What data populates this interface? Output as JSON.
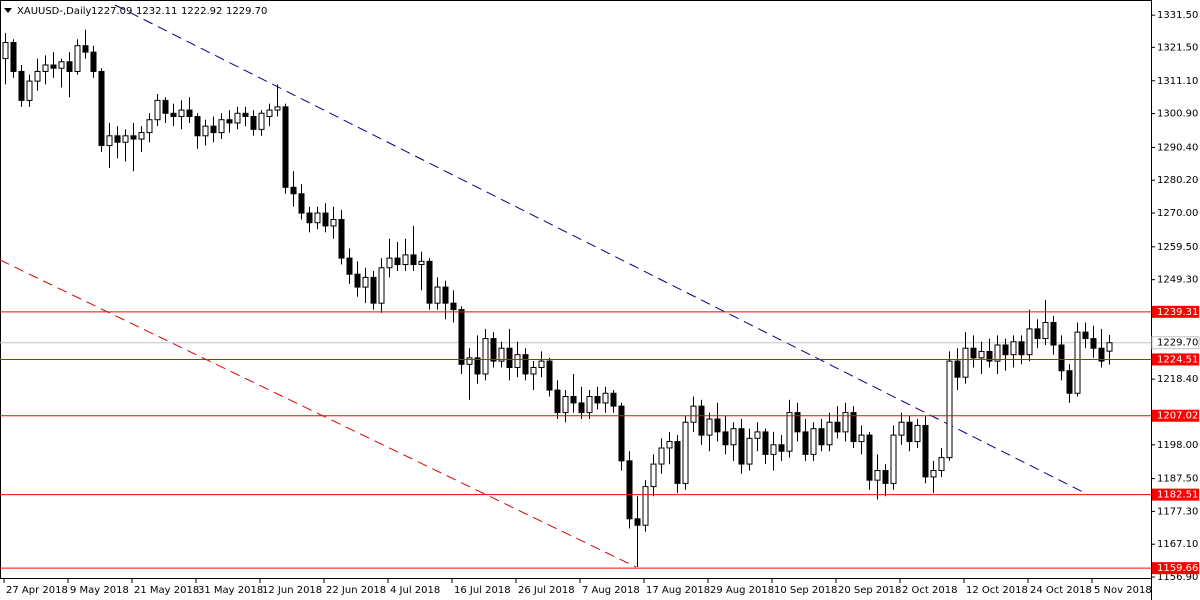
{
  "chart_data": {
    "type": "candlestick",
    "header": {
      "symbol": "XAUUSD-,Daily",
      "ohlc_labels": [
        "1227.09",
        "1232.11",
        "1222.92",
        "1229.70"
      ]
    },
    "ylim": [
      1156.6,
      1336.2
    ],
    "yticks": [
      {
        "value": 1331.5,
        "label": "1331.50"
      },
      {
        "value": 1321.5,
        "label": "1321.50"
      },
      {
        "value": 1311.1,
        "label": "1311.10"
      },
      {
        "value": 1300.9,
        "label": "1300.90"
      },
      {
        "value": 1290.4,
        "label": "1290.40"
      },
      {
        "value": 1280.2,
        "label": "1280.20"
      },
      {
        "value": 1270,
        "label": "1270.00"
      },
      {
        "value": 1259.5,
        "label": "1259.50"
      },
      {
        "value": 1249.3,
        "label": "1249.30"
      },
      {
        "value": 1218.4,
        "label": "1218.40"
      },
      {
        "value": 1198,
        "label": "1198.00"
      },
      {
        "value": 1187.5,
        "label": "1187.50"
      },
      {
        "value": 1177.3,
        "label": "1177.30"
      },
      {
        "value": 1167.1,
        "label": "1167.10"
      },
      {
        "value": 1156.9,
        "label": "1156.90"
      }
    ],
    "levels": [
      1239.31,
      1224.51,
      1207.02,
      1182.51,
      1159.66
    ],
    "level_color": "#ff0000",
    "last_price": {
      "value": 1229.7,
      "label": "1229.70"
    },
    "bull_color": "#ffffff",
    "bear_color": "#000000",
    "grid": false,
    "categories": [
      "27 Apr 2018",
      null,
      null,
      null,
      null,
      null,
      null,
      null,
      "9 May 2018",
      null,
      null,
      null,
      null,
      null,
      null,
      null,
      "21 May 2018",
      null,
      null,
      null,
      null,
      null,
      null,
      null,
      "31 May 2018",
      null,
      null,
      null,
      null,
      null,
      null,
      null,
      "12 Jun 2018",
      null,
      null,
      null,
      null,
      null,
      null,
      null,
      "22 Jun 2018",
      null,
      null,
      null,
      null,
      null,
      null,
      null,
      "4 Jul 2018",
      null,
      null,
      null,
      null,
      null,
      null,
      null,
      "16 Jul 2018",
      null,
      null,
      null,
      null,
      null,
      null,
      null,
      "26 Jul 2018",
      null,
      null,
      null,
      null,
      null,
      null,
      null,
      "7 Aug 2018",
      null,
      null,
      null,
      null,
      null,
      null,
      null,
      "17 Aug 2018",
      null,
      null,
      null,
      null,
      null,
      null,
      null,
      "29 Aug 2018",
      null,
      null,
      null,
      null,
      null,
      null,
      null,
      "10 Sep 2018",
      null,
      null,
      null,
      null,
      null,
      null,
      null,
      "20 Sep 2018",
      null,
      null,
      null,
      null,
      null,
      null,
      null,
      "2 Oct 2018",
      null,
      null,
      null,
      null,
      null,
      null,
      null,
      "12 Oct 2018",
      null,
      null,
      null,
      null,
      null,
      null,
      null,
      "24 Oct 2018",
      null,
      null,
      null,
      null,
      null,
      null,
      null,
      "5 Nov 2018",
      null,
      null
    ],
    "ohlc": [
      [
        1318,
        1326,
        1310,
        1323
      ],
      [
        1323,
        1324,
        1312,
        1314
      ],
      [
        1314,
        1316,
        1303,
        1305
      ],
      [
        1305,
        1313,
        1303,
        1311
      ],
      [
        1311,
        1318,
        1308,
        1314
      ],
      [
        1314,
        1319,
        1310,
        1316
      ],
      [
        1316,
        1320,
        1312,
        1315
      ],
      [
        1315,
        1318,
        1309,
        1317
      ],
      [
        1317,
        1320,
        1306,
        1314
      ],
      [
        1314,
        1324,
        1313,
        1322
      ],
      [
        1322,
        1327,
        1318,
        1320
      ],
      [
        1320,
        1322,
        1312,
        1314
      ],
      [
        1314,
        1315,
        1289,
        1291
      ],
      [
        1291,
        1298,
        1284,
        1294
      ],
      [
        1294,
        1297,
        1287,
        1292
      ],
      [
        1292,
        1296,
        1286,
        1294
      ],
      [
        1294,
        1298,
        1283,
        1293
      ],
      [
        1293,
        1297,
        1289,
        1295
      ],
      [
        1295,
        1301,
        1292,
        1299
      ],
      [
        1299,
        1307,
        1297,
        1305
      ],
      [
        1305,
        1306,
        1298,
        1301
      ],
      [
        1301,
        1304,
        1297,
        1300
      ],
      [
        1300,
        1305,
        1296,
        1302
      ],
      [
        1302,
        1306,
        1298,
        1300
      ],
      [
        1300,
        1301,
        1290,
        1294
      ],
      [
        1294,
        1299,
        1291,
        1297
      ],
      [
        1297,
        1300,
        1292,
        1295
      ],
      [
        1295,
        1301,
        1293,
        1299
      ],
      [
        1299,
        1302,
        1295,
        1298
      ],
      [
        1298,
        1303,
        1296,
        1301
      ],
      [
        1301,
        1303,
        1297,
        1300
      ],
      [
        1300,
        1302,
        1294,
        1296
      ],
      [
        1296,
        1302,
        1294,
        1301
      ],
      [
        1300,
        1304,
        1297,
        1302
      ],
      [
        1302,
        1310,
        1300,
        1303
      ],
      [
        1303,
        1304,
        1276,
        1278
      ],
      [
        1278,
        1283,
        1272,
        1276
      ],
      [
        1276,
        1279,
        1268,
        1270
      ],
      [
        1270,
        1272,
        1264,
        1267
      ],
      [
        1267,
        1272,
        1265,
        1270
      ],
      [
        1270,
        1273,
        1264,
        1266
      ],
      [
        1266,
        1272,
        1262,
        1268
      ],
      [
        1268,
        1271,
        1254,
        1256
      ],
      [
        1256,
        1259,
        1248,
        1251
      ],
      [
        1251,
        1255,
        1244,
        1247
      ],
      [
        1247,
        1253,
        1242,
        1250
      ],
      [
        1250,
        1252,
        1240,
        1242
      ],
      [
        1242,
        1256,
        1239,
        1253
      ],
      [
        1253,
        1262,
        1250,
        1256
      ],
      [
        1256,
        1261,
        1252,
        1254
      ],
      [
        1254,
        1262,
        1252,
        1257
      ],
      [
        1257,
        1266,
        1252,
        1254
      ],
      [
        1254,
        1258,
        1246,
        1255
      ],
      [
        1255,
        1256,
        1240,
        1242
      ],
      [
        1242,
        1250,
        1240,
        1247
      ],
      [
        1247,
        1249,
        1237,
        1242
      ],
      [
        1242,
        1246,
        1236,
        1240
      ],
      [
        1240,
        1241,
        1220,
        1223
      ],
      [
        1223,
        1228,
        1212,
        1225
      ],
      [
        1225,
        1232,
        1217,
        1220
      ],
      [
        1220,
        1234,
        1218,
        1231
      ],
      [
        1231,
        1233,
        1222,
        1224
      ],
      [
        1224,
        1230,
        1222,
        1228
      ],
      [
        1228,
        1234,
        1218,
        1222
      ],
      [
        1222,
        1230,
        1219,
        1226
      ],
      [
        1226,
        1228,
        1218,
        1220
      ],
      [
        1220,
        1224,
        1215,
        1222
      ],
      [
        1222,
        1227,
        1219,
        1224
      ],
      [
        1224,
        1225,
        1213,
        1215
      ],
      [
        1215,
        1218,
        1206,
        1208
      ],
      [
        1208,
        1215,
        1205,
        1213
      ],
      [
        1213,
        1220,
        1208,
        1211
      ],
      [
        1211,
        1216,
        1206,
        1208
      ],
      [
        1208,
        1215,
        1206,
        1213
      ],
      [
        1213,
        1216,
        1209,
        1211
      ],
      [
        1211,
        1216,
        1208,
        1214
      ],
      [
        1214,
        1215,
        1208,
        1210
      ],
      [
        1210,
        1211,
        1190,
        1193
      ],
      [
        1193,
        1196,
        1172,
        1175
      ],
      [
        1175,
        1182,
        1160,
        1173
      ],
      [
        1173,
        1187,
        1171,
        1185
      ],
      [
        1185,
        1195,
        1182,
        1192
      ],
      [
        1192,
        1200,
        1189,
        1197
      ],
      [
        1197,
        1202,
        1192,
        1199
      ],
      [
        1199,
        1201,
        1183,
        1186
      ],
      [
        1186,
        1207,
        1184,
        1205
      ],
      [
        1205,
        1213,
        1202,
        1210
      ],
      [
        1210,
        1212,
        1198,
        1201
      ],
      [
        1201,
        1208,
        1196,
        1206
      ],
      [
        1206,
        1211,
        1199,
        1202
      ],
      [
        1202,
        1207,
        1195,
        1198
      ],
      [
        1198,
        1205,
        1193,
        1203
      ],
      [
        1203,
        1206,
        1189,
        1192
      ],
      [
        1192,
        1203,
        1190,
        1200
      ],
      [
        1200,
        1205,
        1196,
        1202
      ],
      [
        1202,
        1203,
        1192,
        1195
      ],
      [
        1195,
        1202,
        1190,
        1198
      ],
      [
        1198,
        1201,
        1193,
        1196
      ],
      [
        1196,
        1212,
        1194,
        1208
      ],
      [
        1208,
        1211,
        1199,
        1202
      ],
      [
        1202,
        1206,
        1193,
        1195
      ],
      [
        1195,
        1205,
        1193,
        1203
      ],
      [
        1203,
        1206,
        1196,
        1198
      ],
      [
        1198,
        1208,
        1196,
        1205
      ],
      [
        1205,
        1210,
        1200,
        1202
      ],
      [
        1202,
        1211,
        1199,
        1208
      ],
      [
        1208,
        1210,
        1197,
        1199
      ],
      [
        1199,
        1204,
        1195,
        1201
      ],
      [
        1201,
        1202,
        1184,
        1187
      ],
      [
        1187,
        1195,
        1181,
        1190
      ],
      [
        1190,
        1192,
        1182,
        1186
      ],
      [
        1186,
        1204,
        1184,
        1201
      ],
      [
        1201,
        1208,
        1198,
        1205
      ],
      [
        1205,
        1207,
        1196,
        1199
      ],
      [
        1199,
        1206,
        1197,
        1204
      ],
      [
        1204,
        1207,
        1186,
        1188
      ],
      [
        1188,
        1193,
        1183,
        1190
      ],
      [
        1190,
        1197,
        1188,
        1194
      ],
      [
        1194,
        1227,
        1193,
        1224
      ],
      [
        1224,
        1228,
        1215,
        1219
      ],
      [
        1219,
        1233,
        1217,
        1228
      ],
      [
        1228,
        1232,
        1222,
        1225
      ],
      [
        1225,
        1230,
        1220,
        1227
      ],
      [
        1227,
        1231,
        1222,
        1224
      ],
      [
        1224,
        1232,
        1220,
        1229
      ],
      [
        1229,
        1231,
        1221,
        1226
      ],
      [
        1226,
        1232,
        1222,
        1230
      ],
      [
        1230,
        1232,
        1223,
        1226
      ],
      [
        1226,
        1240,
        1224,
        1234
      ],
      [
        1234,
        1237,
        1228,
        1231
      ],
      [
        1231,
        1243,
        1229,
        1236
      ],
      [
        1236,
        1238,
        1226,
        1229
      ],
      [
        1229,
        1232,
        1218,
        1221
      ],
      [
        1221,
        1223,
        1211,
        1214
      ],
      [
        1214,
        1236,
        1213,
        1233
      ],
      [
        1233,
        1236,
        1228,
        1231
      ],
      [
        1231,
        1235,
        1225,
        1228
      ],
      [
        1228,
        1234,
        1222,
        1224
      ],
      [
        1227.09,
        1232.11,
        1222.92,
        1229.7
      ]
    ]
  }
}
